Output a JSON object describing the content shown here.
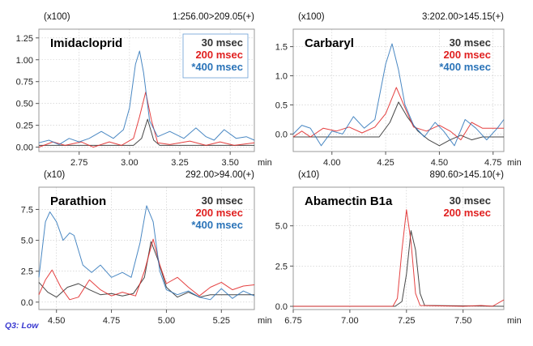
{
  "footnote": "Q3: Low",
  "colors": {
    "s30": "#333333",
    "s200": "#e02020",
    "s400": "#2a73b8",
    "frame": "#9a9a9a",
    "grid": "#c8c8c8"
  },
  "chart_data": [
    {
      "type": "line",
      "compound": "Imidacloprid",
      "multiplier": "(x100)",
      "transition": "1:256.00>209.05(+)",
      "xlabel": "min",
      "xlim": [
        2.55,
        3.62
      ],
      "ylim": [
        -0.05,
        1.35
      ],
      "xticks": [
        {
          "v": 2.75,
          "label": "2.75"
        },
        {
          "v": 3.0,
          "label": "3.00"
        },
        {
          "v": 3.25,
          "label": "3.25"
        },
        {
          "v": 3.5,
          "label": "3.50"
        }
      ],
      "yticks": [
        {
          "v": 0.0,
          "label": "0.00"
        },
        {
          "v": 0.25,
          "label": "0.25"
        },
        {
          "v": 0.5,
          "label": "0.50"
        },
        {
          "v": 0.75,
          "label": "0.75"
        },
        {
          "v": 1.0,
          "label": "1.00"
        },
        {
          "v": 1.25,
          "label": "1.25"
        }
      ],
      "legend_box": true,
      "series": [
        {
          "name": "30 msec",
          "key": "s30",
          "points": [
            [
              2.55,
              0.02
            ],
            [
              2.7,
              0.02
            ],
            [
              2.9,
              0.02
            ],
            [
              3.02,
              0.02
            ],
            [
              3.06,
              0.1
            ],
            [
              3.09,
              0.32
            ],
            [
              3.12,
              0.08
            ],
            [
              3.15,
              0.02
            ],
            [
              3.62,
              0.02
            ]
          ]
        },
        {
          "name": "200 msec",
          "key": "s200",
          "points": [
            [
              2.55,
              0.0
            ],
            [
              2.62,
              0.06
            ],
            [
              2.68,
              0.02
            ],
            [
              2.76,
              0.06
            ],
            [
              2.82,
              0.0
            ],
            [
              2.9,
              0.06
            ],
            [
              2.96,
              0.02
            ],
            [
              3.02,
              0.1
            ],
            [
              3.05,
              0.35
            ],
            [
              3.08,
              0.63
            ],
            [
              3.11,
              0.3
            ],
            [
              3.14,
              0.05
            ],
            [
              3.2,
              0.03
            ],
            [
              3.3,
              0.07
            ],
            [
              3.38,
              0.02
            ],
            [
              3.45,
              0.06
            ],
            [
              3.52,
              0.02
            ],
            [
              3.62,
              0.05
            ]
          ]
        },
        {
          "name": "*400 msec",
          "key": "s400",
          "points": [
            [
              2.55,
              0.05
            ],
            [
              2.6,
              0.08
            ],
            [
              2.65,
              0.03
            ],
            [
              2.7,
              0.1
            ],
            [
              2.75,
              0.06
            ],
            [
              2.8,
              0.1
            ],
            [
              2.86,
              0.18
            ],
            [
              2.92,
              0.1
            ],
            [
              2.97,
              0.2
            ],
            [
              3.0,
              0.45
            ],
            [
              3.03,
              0.95
            ],
            [
              3.05,
              1.1
            ],
            [
              3.07,
              0.85
            ],
            [
              3.1,
              0.3
            ],
            [
              3.14,
              0.12
            ],
            [
              3.2,
              0.18
            ],
            [
              3.27,
              0.1
            ],
            [
              3.33,
              0.22
            ],
            [
              3.38,
              0.12
            ],
            [
              3.42,
              0.08
            ],
            [
              3.47,
              0.2
            ],
            [
              3.53,
              0.1
            ],
            [
              3.58,
              0.12
            ],
            [
              3.62,
              0.08
            ]
          ]
        }
      ]
    },
    {
      "type": "line",
      "compound": "Carbaryl",
      "multiplier": "(x100)",
      "transition": "3:202.00>145.15(+)",
      "xlabel": "min",
      "xlim": [
        3.82,
        4.8
      ],
      "ylim": [
        -0.3,
        1.8
      ],
      "xticks": [
        {
          "v": 4.0,
          "label": "4.00"
        },
        {
          "v": 4.25,
          "label": "4.25"
        },
        {
          "v": 4.5,
          "label": "4.50"
        },
        {
          "v": 4.75,
          "label": "4.75"
        }
      ],
      "yticks": [
        {
          "v": 0.0,
          "label": "0.0"
        },
        {
          "v": 0.5,
          "label": "0.5"
        },
        {
          "v": 1.0,
          "label": "1.0"
        },
        {
          "v": 1.5,
          "label": "1.5"
        }
      ],
      "legend_box": false,
      "series": [
        {
          "name": "30 msec",
          "key": "s30",
          "points": [
            [
              3.82,
              -0.05
            ],
            [
              4.22,
              -0.05
            ],
            [
              4.27,
              0.2
            ],
            [
              4.31,
              0.55
            ],
            [
              4.35,
              0.3
            ],
            [
              4.4,
              0.05
            ],
            [
              4.45,
              -0.1
            ],
            [
              4.5,
              -0.2
            ],
            [
              4.55,
              -0.1
            ],
            [
              4.6,
              -0.02
            ],
            [
              4.65,
              -0.1
            ],
            [
              4.7,
              -0.05
            ],
            [
              4.8,
              -0.05
            ]
          ]
        },
        {
          "name": "200 msec",
          "key": "s200",
          "points": [
            [
              3.82,
              -0.05
            ],
            [
              3.86,
              0.05
            ],
            [
              3.9,
              -0.05
            ],
            [
              3.96,
              0.1
            ],
            [
              4.02,
              0.05
            ],
            [
              4.08,
              0.12
            ],
            [
              4.14,
              0.02
            ],
            [
              4.2,
              0.12
            ],
            [
              4.25,
              0.35
            ],
            [
              4.3,
              0.8
            ],
            [
              4.34,
              0.45
            ],
            [
              4.38,
              0.12
            ],
            [
              4.44,
              0.05
            ],
            [
              4.5,
              0.15
            ],
            [
              4.55,
              0.05
            ],
            [
              4.6,
              -0.1
            ],
            [
              4.65,
              0.2
            ],
            [
              4.7,
              0.1
            ],
            [
              4.8,
              0.1
            ]
          ]
        },
        {
          "name": "*400 msec",
          "key": "s400",
          "points": [
            [
              3.82,
              0.0
            ],
            [
              3.86,
              0.15
            ],
            [
              3.9,
              0.1
            ],
            [
              3.95,
              -0.2
            ],
            [
              4.0,
              0.05
            ],
            [
              4.05,
              0.0
            ],
            [
              4.1,
              0.3
            ],
            [
              4.15,
              0.1
            ],
            [
              4.2,
              0.25
            ],
            [
              4.25,
              1.2
            ],
            [
              4.28,
              1.55
            ],
            [
              4.31,
              1.1
            ],
            [
              4.34,
              0.5
            ],
            [
              4.38,
              0.15
            ],
            [
              4.43,
              -0.05
            ],
            [
              4.48,
              0.2
            ],
            [
              4.52,
              0.05
            ],
            [
              4.57,
              -0.2
            ],
            [
              4.62,
              0.25
            ],
            [
              4.67,
              0.1
            ],
            [
              4.72,
              -0.1
            ],
            [
              4.77,
              0.1
            ],
            [
              4.8,
              0.25
            ]
          ]
        }
      ]
    },
    {
      "type": "line",
      "compound": "Parathion",
      "multiplier": "(x10)",
      "transition": "292.00>94.00(+)",
      "xlabel": "min",
      "xlim": [
        4.42,
        5.4
      ],
      "ylim": [
        -0.6,
        9.3
      ],
      "xticks": [
        {
          "v": 4.5,
          "label": "4.50"
        },
        {
          "v": 4.75,
          "label": "4.75"
        },
        {
          "v": 5.0,
          "label": "5.00"
        },
        {
          "v": 5.25,
          "label": "5.25"
        }
      ],
      "yticks": [
        {
          "v": 0.0,
          "label": "0.0"
        },
        {
          "v": 2.5,
          "label": "2.5"
        },
        {
          "v": 5.0,
          "label": "5.0"
        },
        {
          "v": 7.5,
          "label": "7.5"
        }
      ],
      "legend_box": false,
      "series": [
        {
          "name": "30 msec",
          "key": "s30",
          "points": [
            [
              4.42,
              1.6
            ],
            [
              4.46,
              0.8
            ],
            [
              4.5,
              0.4
            ],
            [
              4.55,
              1.2
            ],
            [
              4.6,
              1.5
            ],
            [
              4.65,
              1.0
            ],
            [
              4.7,
              0.6
            ],
            [
              4.75,
              0.7
            ],
            [
              4.8,
              0.5
            ],
            [
              4.85,
              0.7
            ],
            [
              4.9,
              2.0
            ],
            [
              4.93,
              4.9
            ],
            [
              4.96,
              3.5
            ],
            [
              5.0,
              1.2
            ],
            [
              5.05,
              0.4
            ],
            [
              5.1,
              0.8
            ],
            [
              5.15,
              0.4
            ],
            [
              5.2,
              0.6
            ],
            [
              5.3,
              0.6
            ],
            [
              5.4,
              0.6
            ]
          ]
        },
        {
          "name": "200 msec",
          "key": "s200",
          "points": [
            [
              4.42,
              0.6
            ],
            [
              4.45,
              1.8
            ],
            [
              4.48,
              2.6
            ],
            [
              4.52,
              1.2
            ],
            [
              4.56,
              0.2
            ],
            [
              4.6,
              0.4
            ],
            [
              4.65,
              1.8
            ],
            [
              4.7,
              1.0
            ],
            [
              4.75,
              0.5
            ],
            [
              4.8,
              0.8
            ],
            [
              4.86,
              0.5
            ],
            [
              4.9,
              2.5
            ],
            [
              4.94,
              5.1
            ],
            [
              4.97,
              3.0
            ],
            [
              5.0,
              1.5
            ],
            [
              5.05,
              2.0
            ],
            [
              5.1,
              1.2
            ],
            [
              5.15,
              0.5
            ],
            [
              5.2,
              1.2
            ],
            [
              5.25,
              1.6
            ],
            [
              5.3,
              1.0
            ],
            [
              5.35,
              1.3
            ],
            [
              5.4,
              1.4
            ]
          ]
        },
        {
          "name": "*400 msec",
          "key": "s400",
          "points": [
            [
              4.42,
              2.0
            ],
            [
              4.45,
              6.5
            ],
            [
              4.47,
              7.3
            ],
            [
              4.5,
              6.5
            ],
            [
              4.53,
              5.0
            ],
            [
              4.56,
              5.6
            ],
            [
              4.58,
              5.4
            ],
            [
              4.62,
              3.0
            ],
            [
              4.66,
              2.4
            ],
            [
              4.7,
              3.0
            ],
            [
              4.75,
              2.0
            ],
            [
              4.8,
              2.4
            ],
            [
              4.84,
              2.0
            ],
            [
              4.88,
              4.8
            ],
            [
              4.91,
              7.8
            ],
            [
              4.94,
              6.5
            ],
            [
              4.97,
              2.5
            ],
            [
              5.0,
              1.0
            ],
            [
              5.05,
              0.6
            ],
            [
              5.1,
              0.9
            ],
            [
              5.15,
              0.4
            ],
            [
              5.2,
              0.2
            ],
            [
              5.25,
              1.1
            ],
            [
              5.3,
              0.3
            ],
            [
              5.35,
              0.9
            ],
            [
              5.4,
              0.5
            ]
          ]
        }
      ]
    },
    {
      "type": "line",
      "compound": "Abamectin B1a",
      "multiplier": "(x10)",
      "transition": "890.60>145.10(+)",
      "xlabel": "min",
      "xlim": [
        6.75,
        7.68
      ],
      "ylim": [
        -0.2,
        7.4
      ],
      "xticks": [
        {
          "v": 6.75,
          "label": "6.75"
        },
        {
          "v": 7.0,
          "label": "7.00"
        },
        {
          "v": 7.25,
          "label": "7.25"
        },
        {
          "v": 7.5,
          "label": "7.50"
        }
      ],
      "yticks": [
        {
          "v": 0.0,
          "label": "0.0"
        },
        {
          "v": 2.5,
          "label": "2.5"
        },
        {
          "v": 5.0,
          "label": "5.0"
        }
      ],
      "legend_box": false,
      "series": [
        {
          "name": "30 msec",
          "key": "s30",
          "points": [
            [
              6.75,
              0.0
            ],
            [
              7.2,
              0.0
            ],
            [
              7.23,
              0.3
            ],
            [
              7.25,
              2.0
            ],
            [
              7.27,
              4.7
            ],
            [
              7.29,
              3.5
            ],
            [
              7.31,
              0.8
            ],
            [
              7.33,
              0.05
            ],
            [
              7.68,
              0.0
            ]
          ]
        },
        {
          "name": "200 msec",
          "key": "s200",
          "points": [
            [
              6.75,
              0.0
            ],
            [
              7.19,
              0.0
            ],
            [
              7.21,
              0.5
            ],
            [
              7.23,
              3.5
            ],
            [
              7.25,
              6.0
            ],
            [
              7.27,
              4.0
            ],
            [
              7.29,
              0.8
            ],
            [
              7.31,
              0.05
            ],
            [
              7.5,
              0.0
            ],
            [
              7.58,
              0.05
            ],
            [
              7.63,
              0.0
            ],
            [
              7.68,
              0.4
            ]
          ]
        }
      ]
    }
  ]
}
